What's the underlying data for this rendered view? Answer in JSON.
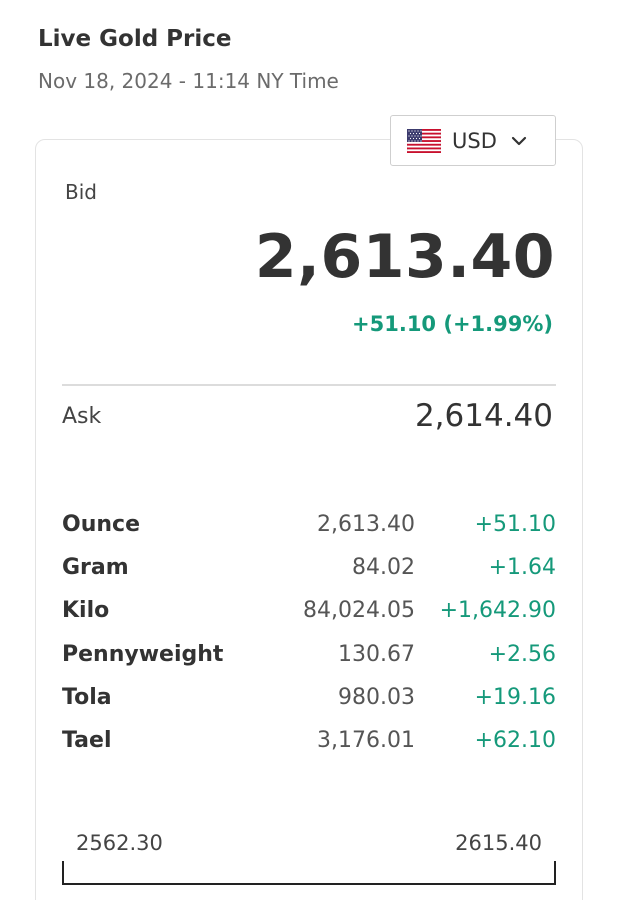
{
  "header": {
    "title": "Live Gold Price",
    "timestamp": "Nov 18, 2024 - 11:14 NY Time"
  },
  "currency_selector": {
    "label": "USD",
    "icon": "us-flag-icon"
  },
  "bid": {
    "label": "Bid",
    "value": "2,613.40",
    "change": "+51.10 (+1.99%)"
  },
  "ask": {
    "label": "Ask",
    "value": "2,614.40"
  },
  "units": [
    {
      "name": "Ounce",
      "price": "2,613.40",
      "change": "+51.10"
    },
    {
      "name": "Gram",
      "price": "84.02",
      "change": "+1.64"
    },
    {
      "name": "Kilo",
      "price": "84,024.05",
      "change": "+1,642.90"
    },
    {
      "name": "Pennyweight",
      "price": "130.67",
      "change": "+2.56"
    },
    {
      "name": "Tola",
      "price": "980.03",
      "change": "+19.16"
    },
    {
      "name": "Tael",
      "price": "3,176.01",
      "change": "+62.10"
    }
  ],
  "range": {
    "low": "2562.30",
    "high": "2615.40"
  },
  "colors": {
    "positive": "#15997a",
    "text": "#333333",
    "muted": "#6b6b6b"
  }
}
